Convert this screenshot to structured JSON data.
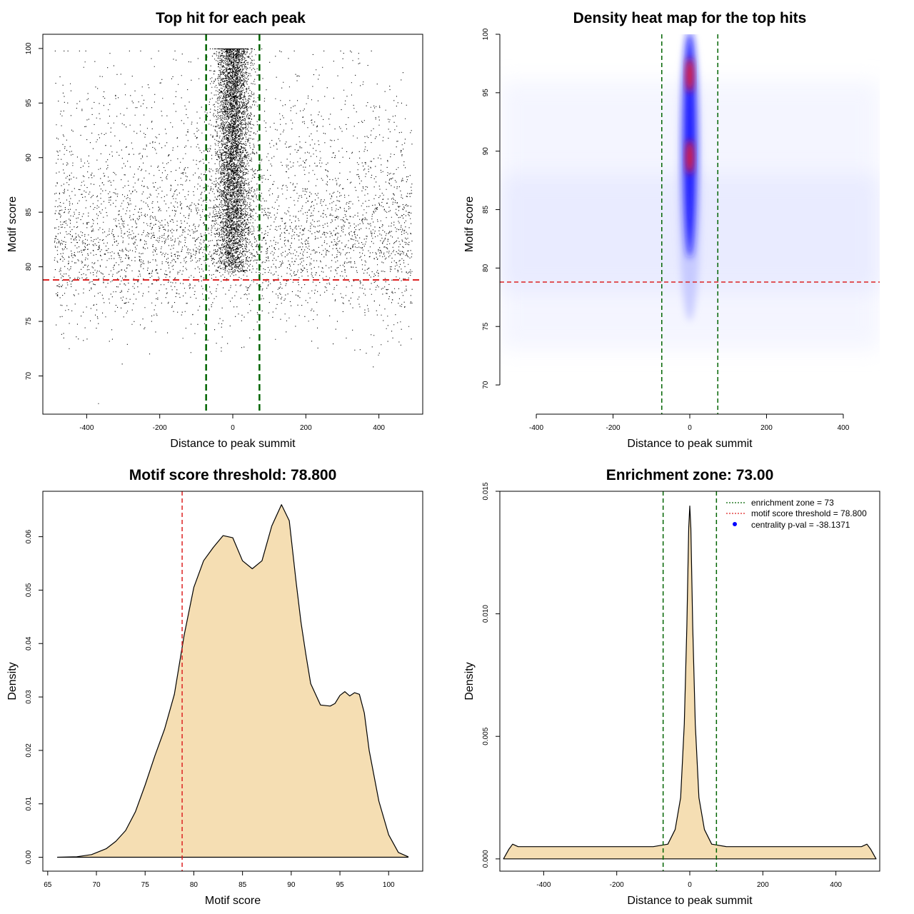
{
  "chart_data": [
    {
      "type": "scatter",
      "title": "Top hit for each peak",
      "xlabel": "Distance to peak summit",
      "ylabel": "Motif score",
      "xlim": [
        -520,
        520
      ],
      "ylim": [
        66.5,
        101.3
      ],
      "xticks": [
        -400,
        -200,
        0,
        200,
        400
      ],
      "yticks": [
        70,
        75,
        80,
        85,
        90,
        95,
        100
      ],
      "point_color": "#000000",
      "points_note": "dense cloud of top motif hits concentrated near 0 distance, sparse uniform background between -500 and 500",
      "vlines": [
        -73,
        73
      ],
      "vline_color": "#006400",
      "hline": 78.8,
      "hline_color": "#dd2222"
    },
    {
      "type": "heatmap",
      "title": "Density heat map for the top hits",
      "xlabel": "Distance to peak summit",
      "ylabel": "Motif score",
      "xlim": [
        -495,
        495
      ],
      "ylim": [
        67.5,
        100
      ],
      "xticks": [
        -400,
        -200,
        0,
        200,
        400
      ],
      "yticks": [
        70,
        75,
        80,
        85,
        90,
        95,
        100
      ],
      "colors": [
        "#ffffff",
        "#0000ff",
        "#ff0000"
      ],
      "hotspots": [
        {
          "x": 0,
          "y": 89.5,
          "level": "high"
        },
        {
          "x": 0,
          "y": 96.5,
          "level": "high"
        }
      ],
      "vlines": [
        -73,
        73
      ],
      "vline_color": "#006400",
      "hline": 78.8,
      "hline_color": "#dd2222"
    },
    {
      "type": "area",
      "title": "Motif score threshold: 78.800",
      "xlabel": "Motif score",
      "ylabel": "Density",
      "xlim": [
        64.5,
        103.5
      ],
      "ylim": [
        -0.0026,
        0.0685
      ],
      "xticks": [
        65,
        70,
        75,
        80,
        85,
        90,
        95,
        100
      ],
      "yticks": [
        0.0,
        0.01,
        0.02,
        0.03,
        0.04,
        0.05,
        0.06
      ],
      "fill_color": "#f5deb3",
      "x": [
        66,
        68,
        69.5,
        71,
        72,
        73,
        74,
        75,
        76,
        77,
        78,
        79,
        80,
        81,
        82,
        83,
        84,
        85,
        86,
        87,
        88,
        89,
        89.8,
        90.5,
        91,
        91.5,
        92,
        93,
        94,
        94.5,
        95,
        95.5,
        96,
        96.5,
        97,
        97.5,
        98,
        99,
        100,
        101,
        102
      ],
      "y": [
        0.0,
        0.0001,
        0.0005,
        0.0016,
        0.003,
        0.005,
        0.0085,
        0.0135,
        0.019,
        0.024,
        0.0305,
        0.0415,
        0.0505,
        0.0555,
        0.058,
        0.0602,
        0.0598,
        0.0555,
        0.054,
        0.0555,
        0.062,
        0.066,
        0.063,
        0.0515,
        0.044,
        0.038,
        0.0325,
        0.0285,
        0.0283,
        0.0288,
        0.0303,
        0.031,
        0.0302,
        0.0308,
        0.0305,
        0.027,
        0.02,
        0.0105,
        0.0042,
        0.0009,
        0.0001
      ],
      "vline": 78.8,
      "vline_color": "#dd2222"
    },
    {
      "type": "area",
      "title": "Enrichment zone: 73.00",
      "xlabel": "Distance to peak summit",
      "ylabel": "Density",
      "xlim": [
        -520,
        520
      ],
      "ylim": [
        -0.0005,
        0.015
      ],
      "xticks": [
        -400,
        -200,
        0,
        200,
        400
      ],
      "yticks": [
        0.0,
        0.005,
        0.01,
        0.015
      ],
      "fill_color": "#f5deb3",
      "x": [
        -510,
        -495,
        -485,
        -470,
        -400,
        -300,
        -200,
        -100,
        -60,
        -40,
        -25,
        -15,
        -8,
        -3,
        0,
        3,
        8,
        15,
        25,
        40,
        60,
        100,
        200,
        300,
        400,
        470,
        485,
        495,
        510
      ],
      "y": [
        0.0,
        0.0004,
        0.0006,
        0.0005,
        0.0005,
        0.0005,
        0.0005,
        0.0005,
        0.0006,
        0.0012,
        0.0025,
        0.0055,
        0.0095,
        0.0135,
        0.0144,
        0.0135,
        0.0095,
        0.0055,
        0.0025,
        0.0012,
        0.0006,
        0.0005,
        0.0005,
        0.0005,
        0.0005,
        0.0005,
        0.0006,
        0.0004,
        0.0
      ],
      "vlines": [
        -73,
        73
      ],
      "vline_color": "#006400",
      "legend": [
        {
          "label": "enrichment zone = 73",
          "style": "dotted",
          "color": "#006400"
        },
        {
          "label": "motif score threshold = 78.800",
          "style": "dotted",
          "color": "#dd2222"
        },
        {
          "label": "centrality p-val = -38.1371",
          "style": "point",
          "color": "#0000ff"
        }
      ],
      "legend_position": "top-right"
    }
  ]
}
